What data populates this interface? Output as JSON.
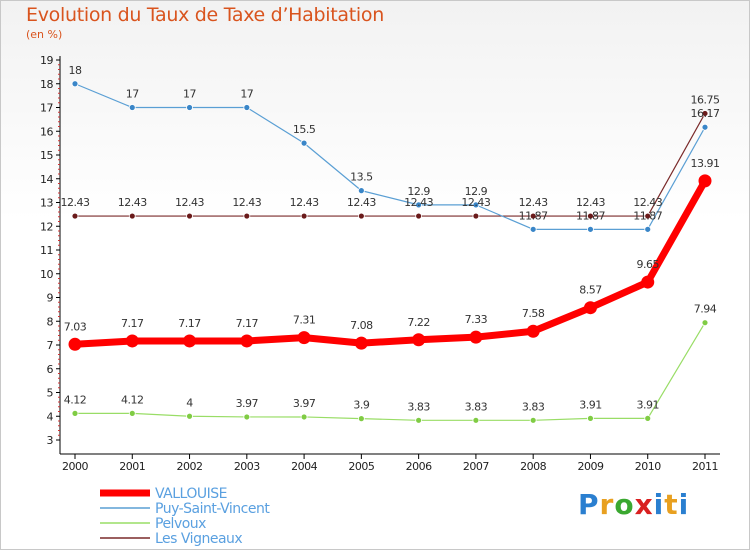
{
  "header": {
    "title": "Evolution du Taux de Taxe d’Habitation",
    "subtitle": "(en %)"
  },
  "logo": {
    "text": "Proxiti",
    "colors": [
      "#2a7fd0",
      "#e8a020",
      "#3aa830",
      "#d92020",
      "#2a7fd0",
      "#e8a020",
      "#2a7fd0"
    ]
  },
  "chart_data": {
    "type": "line",
    "title": "Evolution du Taux de Taxe d’Habitation",
    "ylabel": "(en %)",
    "xlabel": "",
    "x": [
      "2000",
      "2001",
      "2002",
      "2003",
      "2004",
      "2005",
      "2006",
      "2007",
      "2008",
      "2009",
      "2010",
      "2011"
    ],
    "ylim": [
      3,
      19
    ],
    "yticks": [
      3,
      4,
      5,
      6,
      7,
      8,
      9,
      10,
      11,
      12,
      13,
      14,
      15,
      16,
      17,
      18,
      19
    ],
    "grid": false,
    "legend": "bottom-left",
    "series": [
      {
        "name": "VALLOUISE",
        "color": "#ff0000",
        "values": [
          7.03,
          7.17,
          7.17,
          7.17,
          7.31,
          7.08,
          7.22,
          7.33,
          7.58,
          8.57,
          9.65,
          13.91
        ],
        "labels": [
          "7.03",
          "7.17",
          "7.17",
          "7.17",
          "7.31",
          "7.08",
          "7.22",
          "7.33",
          "7.58",
          "8.57",
          "9.65",
          "13.91"
        ]
      },
      {
        "name": "Puy-Saint-Vincent",
        "color": "#5a9fd4",
        "values": [
          18,
          17,
          17,
          17,
          15.5,
          13.5,
          12.9,
          12.9,
          11.87,
          11.87,
          11.87,
          16.17
        ],
        "labels": [
          "18",
          "17",
          "17",
          "17",
          "15.5",
          "13.5",
          "12.9",
          "12.9",
          "11.87",
          "11.87",
          "11.87",
          "16.17"
        ]
      },
      {
        "name": "Pelvoux",
        "color": "#99dd66",
        "values": [
          4.12,
          4.12,
          4,
          3.97,
          3.97,
          3.9,
          3.83,
          3.83,
          3.83,
          3.91,
          3.91,
          7.94
        ],
        "labels": [
          "4.12",
          "4.12",
          "4",
          "3.97",
          "3.97",
          "3.9",
          "3.83",
          "3.83",
          "3.83",
          "3.91",
          "3.91",
          "7.94"
        ]
      },
      {
        "name": "Les Vigneaux",
        "color": "#7a2a2a",
        "values": [
          12.43,
          12.43,
          12.43,
          12.43,
          12.43,
          12.43,
          12.43,
          12.43,
          12.43,
          12.43,
          12.43,
          16.75
        ],
        "labels": [
          "12.43",
          "12.43",
          "12.43",
          "12.43",
          "12.43",
          "12.43",
          "12.43",
          "12.43",
          "12.43",
          "12.43",
          "12.43",
          "16.75"
        ]
      }
    ]
  }
}
